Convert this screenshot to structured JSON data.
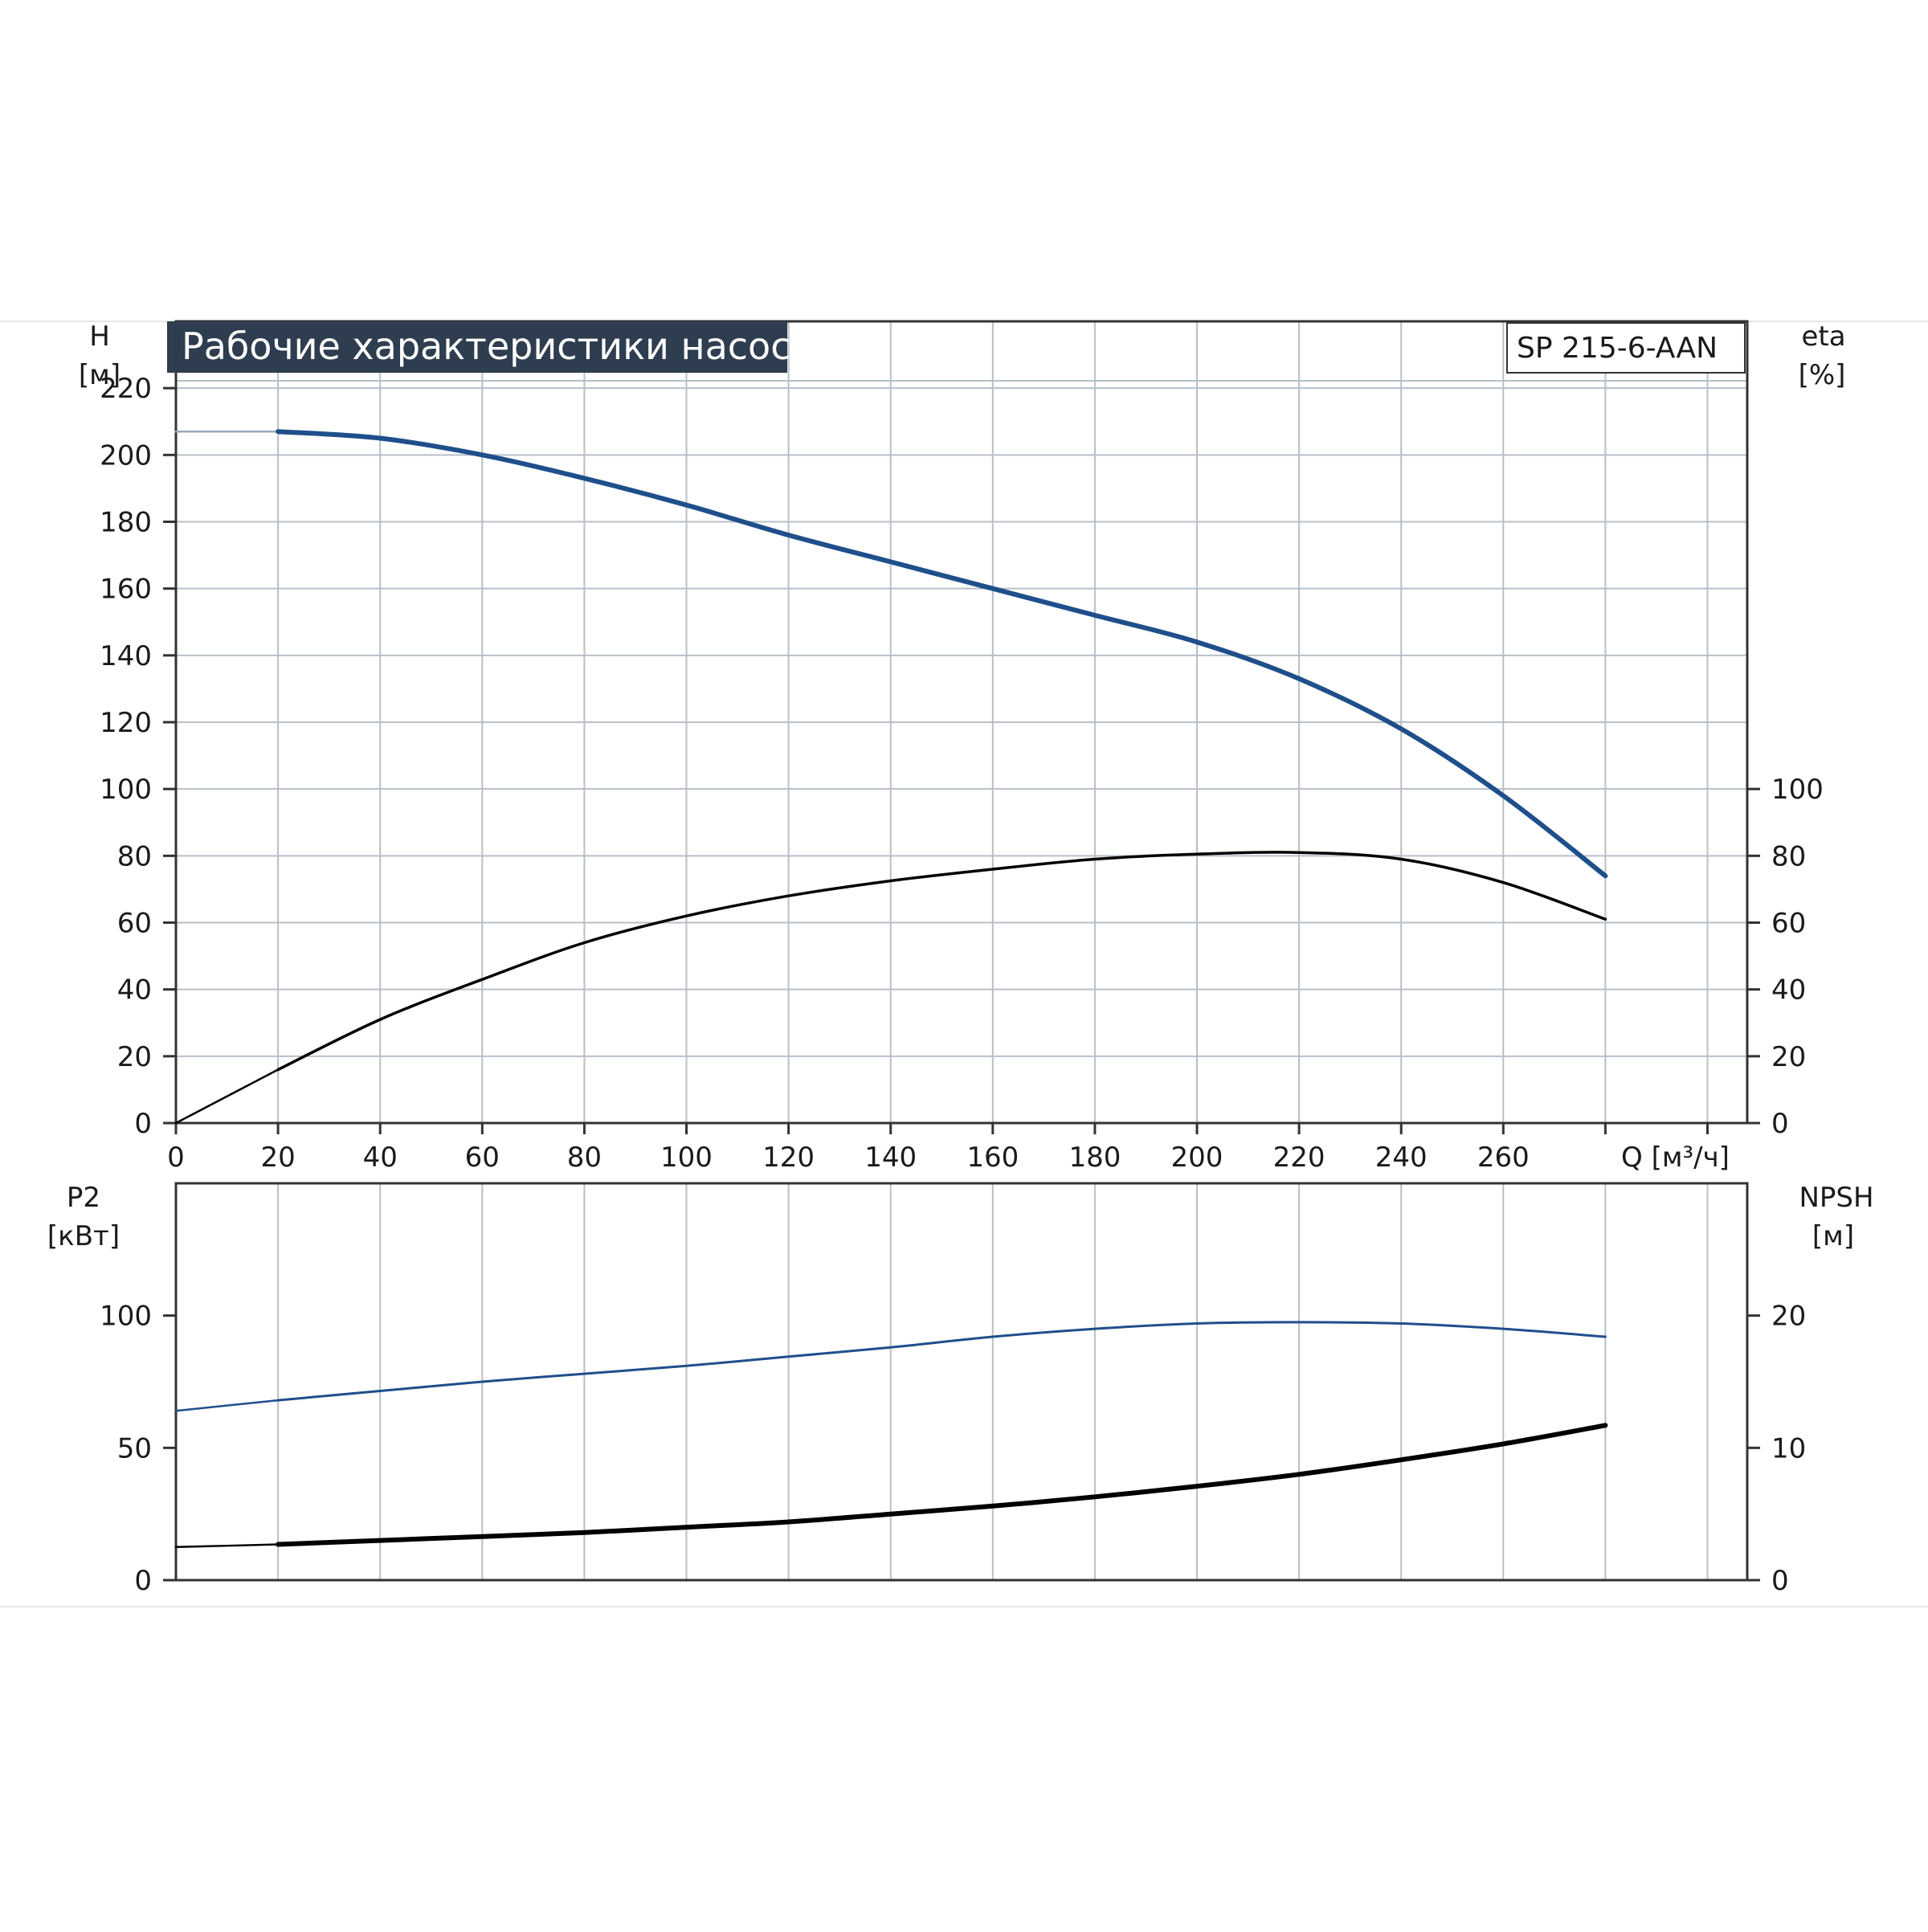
{
  "colors": {
    "blue_curve": "#1f4f8b",
    "black_curve": "#000000",
    "grid": "#b8bfc6",
    "axis": "#333333",
    "title_bg": "#2e3d4f"
  },
  "chart_data": [
    {
      "type": "line",
      "panel": "upper",
      "title": "Рабочие характеристики насоса",
      "model": "SP 215-6-AAN",
      "xlabel": "Q [м³/ч]",
      "xlim": [
        0,
        300
      ],
      "x_ticks": [
        "0",
        "20",
        "40",
        "60",
        "80",
        "100",
        "120",
        "140",
        "160",
        "180",
        "200",
        "220",
        "240",
        "260"
      ],
      "y_left_label_top": "H",
      "y_left_label_unit": "[м]",
      "y_left_lim": [
        0,
        240
      ],
      "y_left_ticks": [
        "0",
        "20",
        "40",
        "60",
        "80",
        "100",
        "120",
        "140",
        "160",
        "180",
        "200",
        "220"
      ],
      "y_right_label_top": "eta",
      "y_right_label_unit": "[%]",
      "y_right_lim": [
        0,
        240
      ],
      "y_right_ticks": [
        "0",
        "20",
        "40",
        "60",
        "80",
        "100"
      ],
      "grid": true,
      "series": [
        {
          "name": "H",
          "axis": "left",
          "color": "blue",
          "points": [
            [
              0,
              207
            ],
            [
              20,
              207
            ],
            [
              40,
              205
            ],
            [
              60,
              200
            ],
            [
              80,
              193
            ],
            [
              100,
              185
            ],
            [
              120,
              176
            ],
            [
              140,
              168
            ],
            [
              160,
              160
            ],
            [
              180,
              152
            ],
            [
              200,
              144
            ],
            [
              220,
              133
            ],
            [
              240,
              118
            ],
            [
              260,
              98
            ],
            [
              280,
              74
            ]
          ]
        },
        {
          "name": "eta",
          "axis": "right",
          "color": "black",
          "points": [
            [
              0,
              0
            ],
            [
              20,
              16
            ],
            [
              40,
              31
            ],
            [
              60,
              43
            ],
            [
              80,
              54
            ],
            [
              100,
              62
            ],
            [
              120,
              68
            ],
            [
              140,
              72.5
            ],
            [
              160,
              76
            ],
            [
              180,
              79
            ],
            [
              200,
              80.5
            ],
            [
              220,
              81
            ],
            [
              240,
              79
            ],
            [
              260,
              72
            ],
            [
              280,
              61
            ]
          ]
        }
      ]
    },
    {
      "type": "line",
      "panel": "lower",
      "xlim": [
        0,
        300
      ],
      "y_left_label_top": "P2",
      "y_left_label_unit": "[кВт]",
      "y_left_lim": [
        0,
        150
      ],
      "y_left_ticks": [
        "0",
        "50",
        "100"
      ],
      "y_right_label_top": "NPSH",
      "y_right_label_unit": "[м]",
      "y_right_lim": [
        0,
        30
      ],
      "y_right_ticks": [
        "0",
        "10",
        "20"
      ],
      "grid": true,
      "series": [
        {
          "name": "P2",
          "axis": "left",
          "color": "blue",
          "points": [
            [
              0,
              64
            ],
            [
              20,
              68
            ],
            [
              40,
              71.5
            ],
            [
              60,
              75
            ],
            [
              80,
              78
            ],
            [
              100,
              81
            ],
            [
              120,
              84.5
            ],
            [
              140,
              88
            ],
            [
              160,
              92
            ],
            [
              180,
              95
            ],
            [
              200,
              97
            ],
            [
              220,
              97.5
            ],
            [
              240,
              97
            ],
            [
              260,
              95
            ],
            [
              280,
              92
            ]
          ]
        },
        {
          "name": "NPSH",
          "axis": "right",
          "color": "black",
          "points": [
            [
              0,
              2.5
            ],
            [
              20,
              2.7
            ],
            [
              40,
              3.0
            ],
            [
              60,
              3.3
            ],
            [
              80,
              3.6
            ],
            [
              100,
              4.0
            ],
            [
              120,
              4.4
            ],
            [
              140,
              5.0
            ],
            [
              160,
              5.6
            ],
            [
              180,
              6.3
            ],
            [
              200,
              7.1
            ],
            [
              220,
              8.0
            ],
            [
              240,
              9.1
            ],
            [
              260,
              10.3
            ],
            [
              280,
              11.7
            ]
          ]
        }
      ]
    }
  ]
}
